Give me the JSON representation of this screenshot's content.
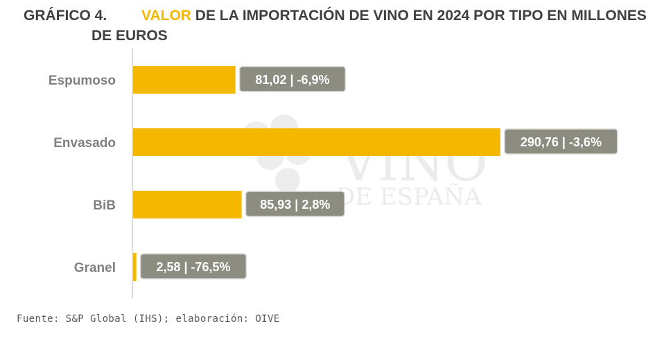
{
  "title": {
    "number": "GRÁFICO 4.",
    "highlight": "VALOR",
    "rest_line1": " DE LA IMPORTACIÓN DE VINO EN 2024 POR TIPO EN MILLONES",
    "rest_line2": "DE EUROS"
  },
  "watermark": {
    "line1": "VINO",
    "line2": "DE ESPAÑA"
  },
  "source": "Fuente: S&P Global (IHS); elaboración: OIVE",
  "colors": {
    "bar": "#F5B800",
    "label_box": "#8C8C80",
    "axis": "#D0D0D0",
    "category_text": "#808080"
  },
  "chart_data": {
    "type": "bar",
    "orientation": "horizontal",
    "categories": [
      "Espumoso",
      "Envasado",
      "BiB",
      "Granel"
    ],
    "values": [
      81.02,
      290.76,
      85.93,
      2.58
    ],
    "data_labels": [
      "81,02 | -6,9%",
      "290,76 | -3,6%",
      "85,93 | 2,8%",
      "2,58 | -76,5%"
    ],
    "variation_pct": [
      -6.9,
      -3.6,
      2.8,
      -76.5
    ],
    "title": "VALOR DE LA IMPORTACIÓN DE VINO EN 2024 POR TIPO EN MILLONES DE EUROS",
    "xlabel": "",
    "ylabel": "",
    "xlim": [
      0,
      290.76
    ],
    "grid": false,
    "legend": "none"
  }
}
